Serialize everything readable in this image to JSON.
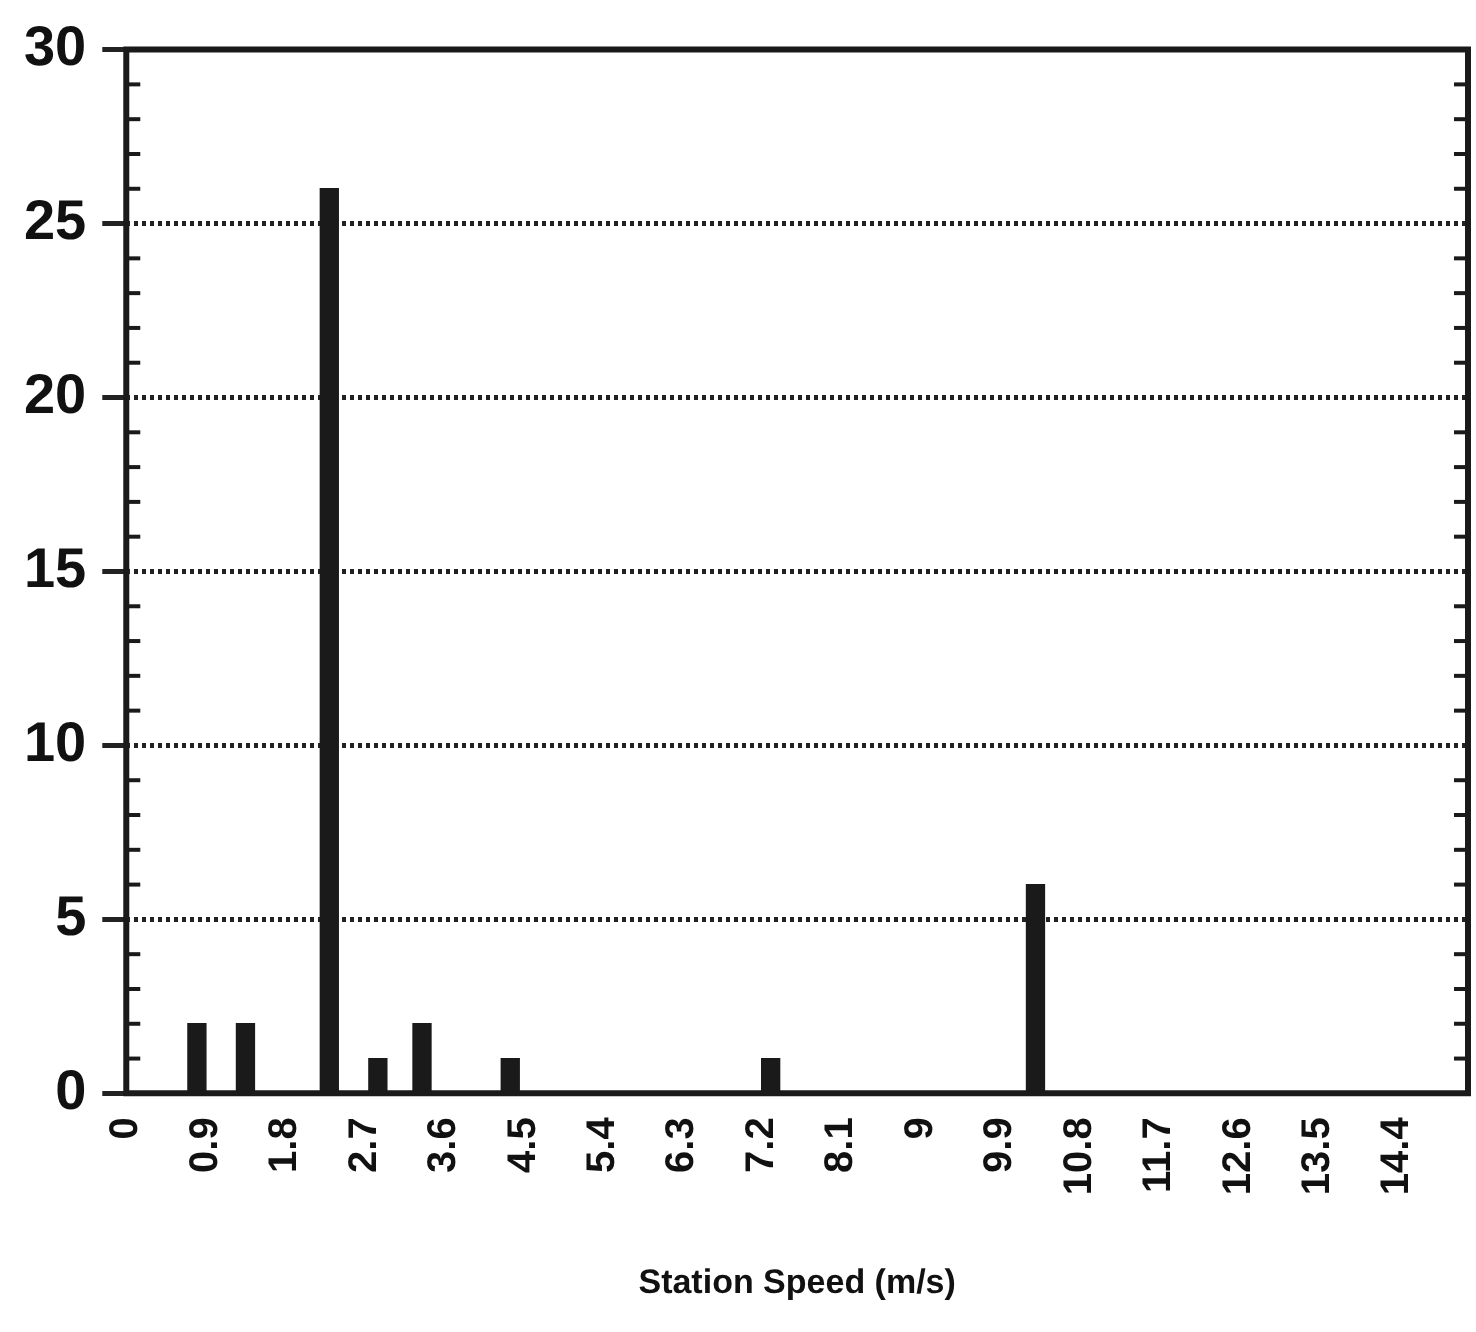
{
  "chart_data": {
    "type": "bar",
    "xlabel": "Station Speed (m/s)",
    "x": [
      0.8,
      1.35,
      2.3,
      2.85,
      3.35,
      4.35,
      7.3,
      10.3
    ],
    "values": [
      2,
      2,
      26,
      1,
      2,
      1,
      1,
      6
    ],
    "color": "#1a1a1a",
    "xlim": [
      0,
      15.2
    ],
    "xticks": [
      0,
      0.9,
      1.8,
      2.7,
      3.6,
      4.5,
      5.4,
      6.3,
      7.2,
      8.1,
      9,
      9.9,
      10.8,
      11.7,
      12.6,
      13.5,
      14.4
    ],
    "ylim": [
      0,
      30
    ],
    "yticks": [
      0,
      {
        "value": 1,
        "label": null
      },
      {
        "value": 2,
        "label": null
      },
      {
        "value": 3,
        "label": null
      },
      {
        "value": 4,
        "label": null
      },
      5,
      {
        "value": 6,
        "label": null
      },
      {
        "value": 7,
        "label": null
      },
      {
        "value": 8,
        "label": null
      },
      {
        "value": 9,
        "label": null
      },
      10,
      {
        "value": 11,
        "label": null
      },
      {
        "value": 12,
        "label": null
      },
      {
        "value": 13,
        "label": null
      },
      {
        "value": 14,
        "label": null
      },
      15,
      {
        "value": 16,
        "label": null
      },
      {
        "value": 17,
        "label": null
      },
      {
        "value": 18,
        "label": null
      },
      {
        "value": 19,
        "label": null
      },
      20,
      {
        "value": 21,
        "label": null
      },
      {
        "value": 22,
        "label": null
      },
      {
        "value": 23,
        "label": null
      },
      {
        "value": 24,
        "label": null
      },
      25,
      {
        "value": 26,
        "label": null
      },
      {
        "value": 27,
        "label": null
      },
      {
        "value": 28,
        "label": null
      },
      {
        "value": 29,
        "label": null
      },
      30
    ],
    "grid": "y"
  }
}
